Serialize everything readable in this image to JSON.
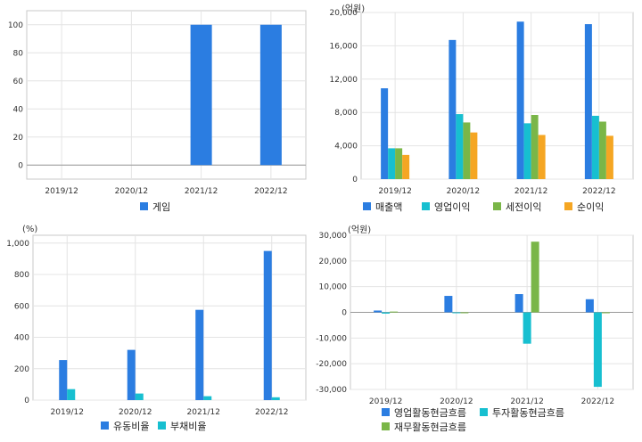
{
  "chart_data": [
    {
      "type": "bar",
      "unit": "",
      "categories": [
        "2019/12",
        "2020/12",
        "2021/12",
        "2022/12"
      ],
      "ylim": [
        -10,
        110
      ],
      "yticks": [
        0,
        20,
        40,
        60,
        80,
        100
      ],
      "ytick_labels": [
        "0",
        "20",
        "40",
        "60",
        "80",
        "100"
      ],
      "grid": true,
      "legend_position": "bottom",
      "series": [
        {
          "name": "게임",
          "values": [
            null,
            null,
            100,
            100
          ]
        }
      ]
    },
    {
      "type": "bar",
      "unit": "(억원)",
      "categories": [
        "2019/12",
        "2020/12",
        "2021/12",
        "2022/12"
      ],
      "ylim": [
        0,
        20000
      ],
      "yticks": [
        0,
        4000,
        8000,
        12000,
        16000,
        20000
      ],
      "ytick_labels": [
        "0",
        "4,000",
        "8,000",
        "12,000",
        "16,000",
        "20,000"
      ],
      "grid": true,
      "legend_position": "bottom",
      "series": [
        {
          "name": "매출액",
          "values": [
            10900,
            16700,
            18900,
            18600
          ]
        },
        {
          "name": "영업이익",
          "values": [
            3700,
            7800,
            6700,
            7600
          ]
        },
        {
          "name": "세전이익",
          "values": [
            3700,
            6800,
            7700,
            6900
          ]
        },
        {
          "name": "순이익",
          "values": [
            2900,
            5600,
            5300,
            5200
          ]
        }
      ]
    },
    {
      "type": "bar",
      "unit": "(%)",
      "categories": [
        "2019/12",
        "2020/12",
        "2021/12",
        "2022/12"
      ],
      "ylim": [
        0,
        1050
      ],
      "yticks": [
        0,
        200,
        400,
        600,
        800,
        1000
      ],
      "ytick_labels": [
        "0",
        "200",
        "400",
        "600",
        "800",
        "1,000"
      ],
      "grid": true,
      "legend_position": "bottom",
      "series": [
        {
          "name": "유동비율",
          "values": [
            255,
            320,
            575,
            950
          ]
        },
        {
          "name": "부채비율",
          "values": [
            70,
            42,
            25,
            18
          ]
        }
      ]
    },
    {
      "type": "bar",
      "unit": "(억원)",
      "categories": [
        "2019/12",
        "2020/12",
        "2021/12",
        "2022/12"
      ],
      "ylim": [
        -30000,
        30000
      ],
      "yticks": [
        -30000,
        -20000,
        -10000,
        0,
        10000,
        20000,
        30000
      ],
      "ytick_labels": [
        "-30,000",
        "-20,000",
        "-10,000",
        "0",
        "10,000",
        "20,000",
        "30,000"
      ],
      "grid": true,
      "legend_position": "bottom",
      "series": [
        {
          "name": "영업활동현금흐름",
          "values": [
            700,
            6400,
            7100,
            5100
          ]
        },
        {
          "name": "투자활동현금흐름",
          "values": [
            -500,
            0,
            -12200,
            -29000
          ]
        },
        {
          "name": "재무활동현금흐름",
          "values": [
            300,
            -300,
            27500,
            -300
          ]
        }
      ]
    }
  ],
  "colors": {
    "series": [
      "#2b7de1",
      "#17bfd0",
      "#7ab648",
      "#f5a623"
    ],
    "grid": "#e4e4e4",
    "frame": "#c8c8c8",
    "zero_line": "#999999"
  }
}
